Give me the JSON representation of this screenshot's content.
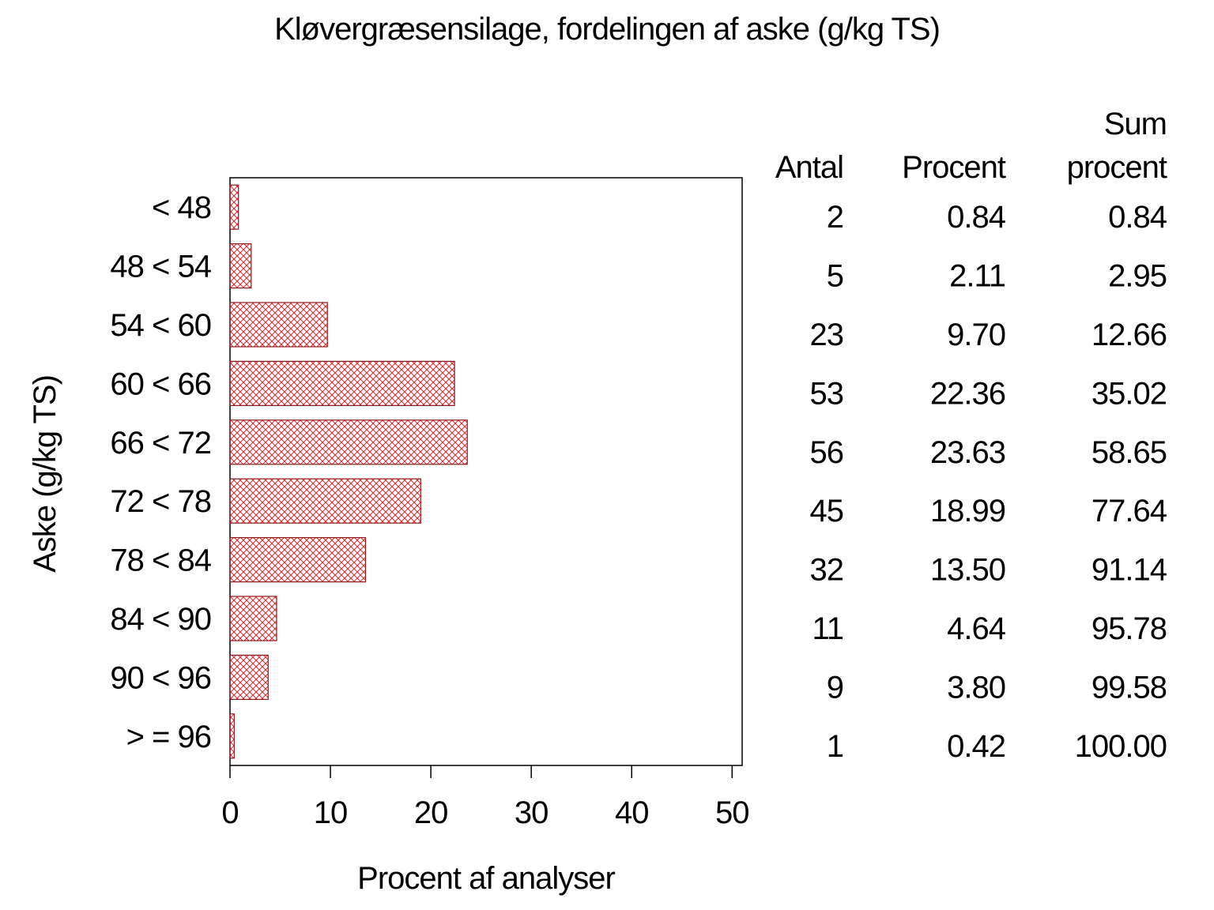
{
  "chart_data": {
    "type": "barh",
    "title": "Kløvergræsensilage, fordelingen af aske (g/kg TS)",
    "x_label": "Procent af analyser",
    "y_label": "Aske (g/kg TS)",
    "categories": [
      "< 48",
      "48 < 54",
      "54 < 60",
      "60 < 66",
      "66 < 72",
      "72 < 78",
      "78 < 84",
      "84 < 90",
      "90 < 96",
      "> = 96"
    ],
    "values": [
      0.84,
      2.11,
      9.7,
      22.36,
      23.63,
      18.99,
      13.5,
      4.64,
      3.8,
      0.42
    ],
    "value_labels": [
      "0.84",
      "2.11",
      "9.70",
      "22.36",
      "23.63",
      "18.99",
      "13.50",
      "4.64",
      "3.80",
      "0.42"
    ],
    "color": "#e8242a",
    "xlim": [
      0,
      51
    ],
    "xticks": [
      0,
      10,
      20,
      30,
      40,
      50
    ],
    "table": {
      "headers": [
        [
          "Antal"
        ],
        [
          "Procent"
        ],
        [
          "Sum",
          "procent"
        ]
      ],
      "counts": [
        2,
        5,
        23,
        53,
        56,
        45,
        32,
        11,
        9,
        1
      ],
      "cumulative": [
        "0.84",
        "2.95",
        "12.66",
        "35.02",
        "58.65",
        "77.64",
        "91.14",
        "95.78",
        "99.58",
        "100.00"
      ]
    }
  }
}
